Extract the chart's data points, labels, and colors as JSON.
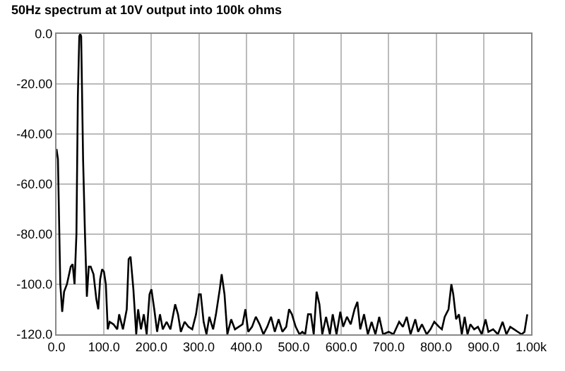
{
  "chart_data": {
    "type": "line",
    "title": "50Hz spectrum at 10V output into 100k ohms",
    "x": [
      0,
      3,
      8,
      12,
      16,
      22,
      30,
      34,
      38,
      42,
      45,
      48,
      50,
      52,
      56,
      60,
      64,
      68,
      72,
      78,
      84,
      88,
      92,
      96,
      100,
      104,
      108,
      112,
      120,
      128,
      132,
      140,
      148,
      152,
      156,
      162,
      168,
      172,
      178,
      184,
      190,
      196,
      200,
      206,
      212,
      218,
      224,
      232,
      240,
      250,
      256,
      262,
      270,
      278,
      286,
      294,
      300,
      304,
      310,
      316,
      322,
      330,
      336,
      344,
      348,
      354,
      360,
      368,
      376,
      384,
      392,
      398,
      404,
      412,
      420,
      428,
      436,
      444,
      452,
      460,
      468,
      476,
      484,
      490,
      496,
      504,
      512,
      518,
      524,
      530,
      536,
      542,
      548,
      554,
      560,
      568,
      576,
      582,
      590,
      598,
      604,
      612,
      620,
      628,
      634,
      640,
      648,
      656,
      664,
      672,
      680,
      688,
      700,
      710,
      722,
      730,
      738,
      746,
      756,
      762,
      770,
      780,
      788,
      796,
      806,
      812,
      818,
      826,
      832,
      836,
      842,
      848,
      854,
      860,
      866,
      872,
      880,
      888,
      896,
      904,
      910,
      920,
      930,
      940,
      948,
      956,
      964,
      972,
      980,
      986,
      992
    ],
    "series": [
      {
        "color": "#000000",
        "values": [
          -46,
          -50,
          -100,
          -111,
          -103,
          -100,
          -93,
          -92,
          -100,
          -80,
          -25,
          -1,
          0,
          -1,
          -50,
          -80,
          -105,
          -93,
          -93,
          -96,
          -106,
          -110,
          -98,
          -94,
          -95,
          -100,
          -118,
          -115,
          -116,
          -118,
          -112,
          -118,
          -110,
          -90,
          -89,
          -102,
          -120,
          -110,
          -118,
          -112,
          -120,
          -104,
          -102,
          -110,
          -119,
          -112,
          -118,
          -115,
          -118,
          -108,
          -112,
          -119,
          -115,
          -117,
          -118,
          -112,
          -104,
          -104,
          -115,
          -120,
          -113,
          -118,
          -112,
          -102,
          -96,
          -104,
          -120,
          -114,
          -118,
          -117,
          -116,
          -110,
          -119,
          -117,
          -113,
          -116,
          -120,
          -117,
          -113,
          -119,
          -114,
          -119,
          -117,
          -110,
          -112,
          -117,
          -120,
          -119,
          -120,
          -112,
          -112,
          -120,
          -103,
          -108,
          -120,
          -113,
          -120,
          -112,
          -120,
          -111,
          -117,
          -113,
          -116,
          -110,
          -107,
          -118,
          -112,
          -120,
          -115,
          -120,
          -113,
          -120,
          -119,
          -120,
          -115,
          -117,
          -113,
          -120,
          -114,
          -119,
          -116,
          -120,
          -118,
          -115,
          -117,
          -118,
          -113,
          -110,
          -100,
          -104,
          -114,
          -112,
          -120,
          -113,
          -120,
          -116,
          -118,
          -117,
          -120,
          -114,
          -119,
          -118,
          -120,
          -115,
          -120,
          -117,
          -118,
          -119,
          -120,
          -119,
          -112
        ]
      }
    ],
    "xlim": [
      0,
      1000
    ],
    "xticks": [
      {
        "value": 0,
        "label": "0.0"
      },
      {
        "value": 100,
        "label": "100.0"
      },
      {
        "value": 200,
        "label": "200.0"
      },
      {
        "value": 300,
        "label": "300.0"
      },
      {
        "value": 400,
        "label": "400.0"
      },
      {
        "value": 500,
        "label": "500.0"
      },
      {
        "value": 600,
        "label": "600.0"
      },
      {
        "value": 700,
        "label": "700.0"
      },
      {
        "value": 800,
        "label": "800.0"
      },
      {
        "value": 900,
        "label": "900.0"
      },
      {
        "value": 1000,
        "label": "1.00k"
      }
    ],
    "ylim": [
      -120,
      0
    ],
    "yticks": [
      {
        "value": 0,
        "label": "0.0"
      },
      {
        "value": -20,
        "label": "-20.00"
      },
      {
        "value": -40,
        "label": "-40.00"
      },
      {
        "value": -60,
        "label": "-60.00"
      },
      {
        "value": -80,
        "label": "-80.00"
      },
      {
        "value": -100,
        "label": "-100.0"
      },
      {
        "value": -120,
        "label": "-120.0"
      }
    ],
    "grid": true,
    "marker": "none",
    "line_style": "solid"
  }
}
